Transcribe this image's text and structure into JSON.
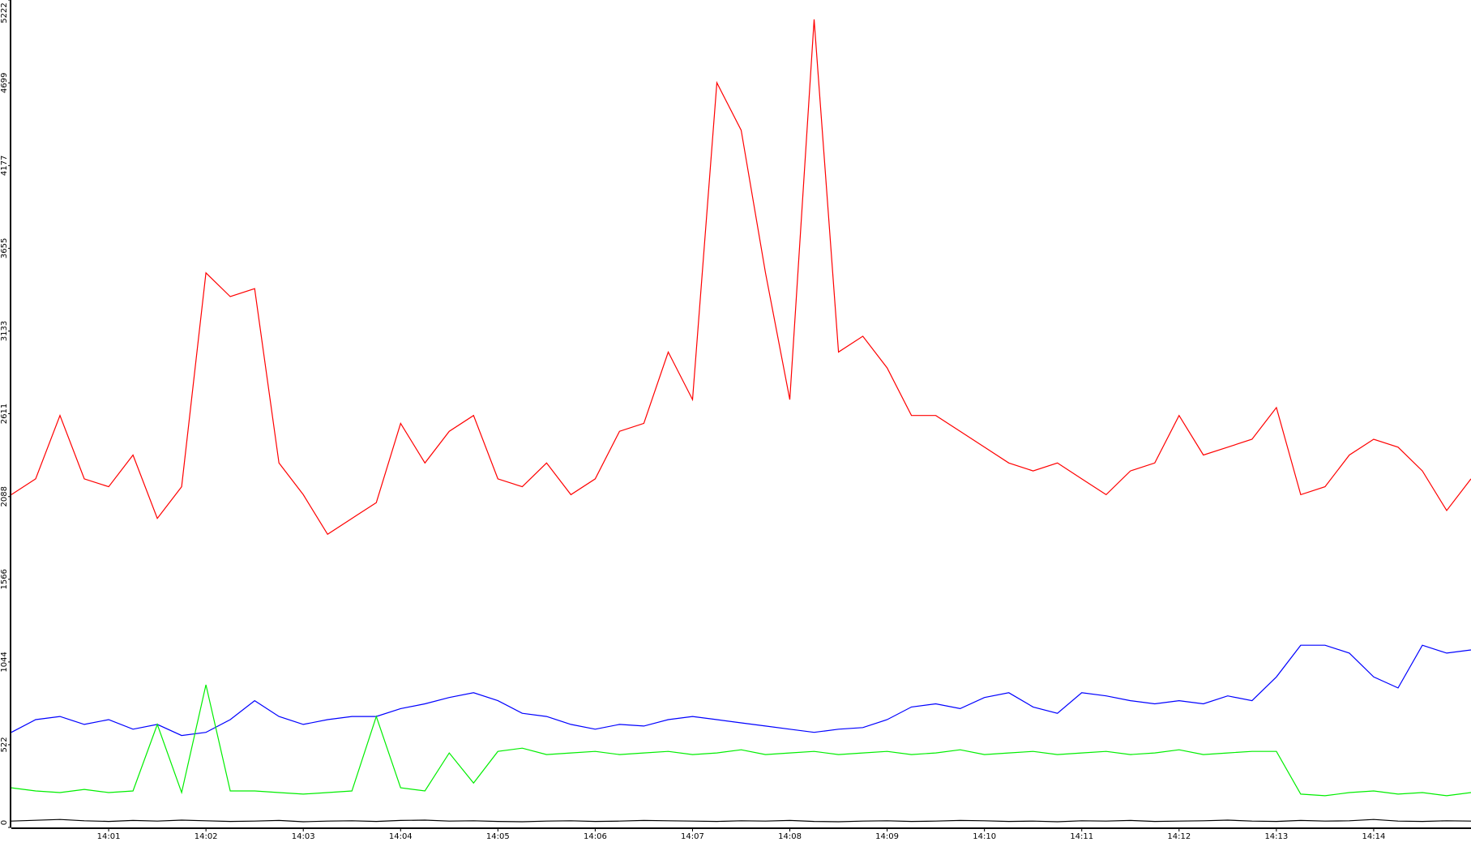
{
  "chart_data": {
    "type": "line",
    "categories": [
      null,
      null,
      null,
      null,
      "14:01",
      null,
      null,
      null,
      "14:02",
      null,
      null,
      null,
      "14:03",
      null,
      null,
      null,
      "14:04",
      null,
      null,
      null,
      "14:05",
      null,
      null,
      null,
      "14:06",
      null,
      null,
      null,
      "14:07",
      null,
      null,
      null,
      "14:08",
      null,
      null,
      null,
      "14:09",
      null,
      null,
      null,
      "14:10",
      null,
      null,
      null,
      "14:11",
      null,
      null,
      null,
      "14:12",
      null,
      null,
      null,
      "14:13",
      null,
      null,
      null,
      "14:14",
      null,
      null,
      null,
      null
    ],
    "ylim": [
      0,
      5222
    ],
    "yticks": [
      0,
      522,
      1044,
      1566,
      2088,
      2611,
      3133,
      3655,
      4177,
      4699,
      5222
    ],
    "series": [
      {
        "color": "#ff0000",
        "values": [
          2100,
          2200,
          2600,
          2200,
          2150,
          2350,
          1950,
          2150,
          3500,
          3350,
          3400,
          2300,
          2100,
          1850,
          1950,
          2050,
          2550,
          2300,
          2500,
          2600,
          2200,
          2150,
          2300,
          2100,
          2200,
          2500,
          2550,
          3000,
          2700,
          4700,
          4400,
          3500,
          2700,
          5100,
          3000,
          3100,
          2900,
          2600,
          2600,
          2500,
          2400,
          2300,
          2250,
          2300,
          2200,
          2100,
          2250,
          2300,
          2600,
          2350,
          2400,
          2450,
          2650,
          2100,
          2150,
          2350,
          2450,
          2400,
          2250,
          2000,
          2200
        ]
      },
      {
        "color": "#0000ff",
        "values": [
          600,
          680,
          700,
          650,
          680,
          620,
          650,
          580,
          600,
          680,
          800,
          700,
          650,
          680,
          700,
          700,
          750,
          780,
          820,
          850,
          800,
          720,
          700,
          650,
          620,
          650,
          640,
          680,
          700,
          680,
          660,
          640,
          620,
          600,
          620,
          630,
          680,
          760,
          780,
          750,
          820,
          850,
          760,
          720,
          850,
          830,
          800,
          780,
          800,
          780,
          830,
          800,
          950,
          1150,
          1150,
          1100,
          950,
          880,
          1150,
          1100,
          1120
        ]
      },
      {
        "color": "#00ee00",
        "values": [
          250,
          230,
          220,
          240,
          220,
          230,
          650,
          220,
          900,
          230,
          230,
          220,
          210,
          220,
          230,
          700,
          250,
          230,
          470,
          280,
          480,
          500,
          460,
          470,
          480,
          460,
          470,
          480,
          460,
          470,
          490,
          460,
          470,
          480,
          460,
          470,
          480,
          460,
          470,
          490,
          460,
          470,
          480,
          460,
          470,
          480,
          460,
          470,
          490,
          460,
          470,
          480,
          480,
          210,
          200,
          220,
          230,
          210,
          220,
          200,
          220
        ]
      },
      {
        "color": "#000000",
        "values": [
          40,
          45,
          50,
          42,
          38,
          44,
          40,
          46,
          42,
          38,
          40,
          44,
          36,
          40,
          42,
          38,
          44,
          46,
          40,
          42,
          38,
          36,
          40,
          42,
          38,
          40,
          44,
          42,
          40,
          38,
          42,
          40,
          44,
          38,
          36,
          40,
          42,
          38,
          40,
          44,
          42,
          38,
          40,
          36,
          42,
          40,
          44,
          38,
          40,
          42,
          46,
          40,
          38,
          44,
          40,
          42,
          50,
          40,
          38,
          42,
          40
        ]
      }
    ]
  }
}
